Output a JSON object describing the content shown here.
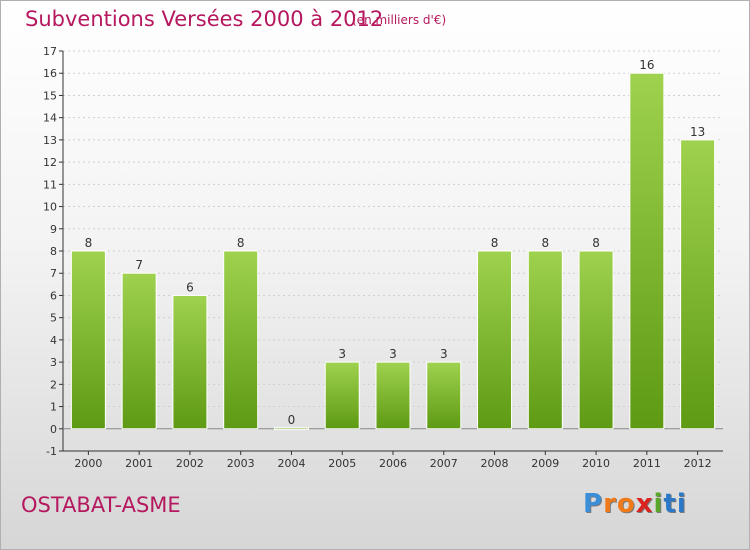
{
  "header": {
    "title": "Subventions Versées 2000 à 2012",
    "subtitle": "(en milliers d'€)"
  },
  "footer": {
    "place": "OSTABAT-ASME",
    "logo_letters": [
      "P",
      "r",
      "o",
      "x",
      "i",
      "ti"
    ]
  },
  "colors": {
    "accent": "#b5185e",
    "bar_top": "#9fd24e",
    "bar_bottom": "#5e9a14",
    "axis": "#333333",
    "grid": "#cfcfcf"
  },
  "chart_data": {
    "type": "bar",
    "title": "Subventions Versées 2000 à 2012",
    "subtitle": "(en milliers d'€)",
    "categories": [
      "2000",
      "2001",
      "2002",
      "2003",
      "2004",
      "2005",
      "2006",
      "2007",
      "2008",
      "2009",
      "2010",
      "2011",
      "2012"
    ],
    "values": [
      8,
      7,
      6,
      8,
      0,
      3,
      3,
      3,
      8,
      8,
      8,
      16,
      13
    ],
    "data_labels": [
      "8",
      "7",
      "6",
      "8",
      "0",
      "3",
      "3",
      "3",
      "8",
      "8",
      "8",
      "16",
      "13"
    ],
    "yticks": [
      "-1",
      "0",
      "1",
      "2",
      "3",
      "4",
      "5",
      "6",
      "7",
      "8",
      "9",
      "10",
      "11",
      "12",
      "13",
      "14",
      "15",
      "16",
      "17"
    ],
    "ylim": [
      -1,
      17
    ],
    "xlabel": "",
    "ylabel": "",
    "grid": true,
    "legend": false
  }
}
